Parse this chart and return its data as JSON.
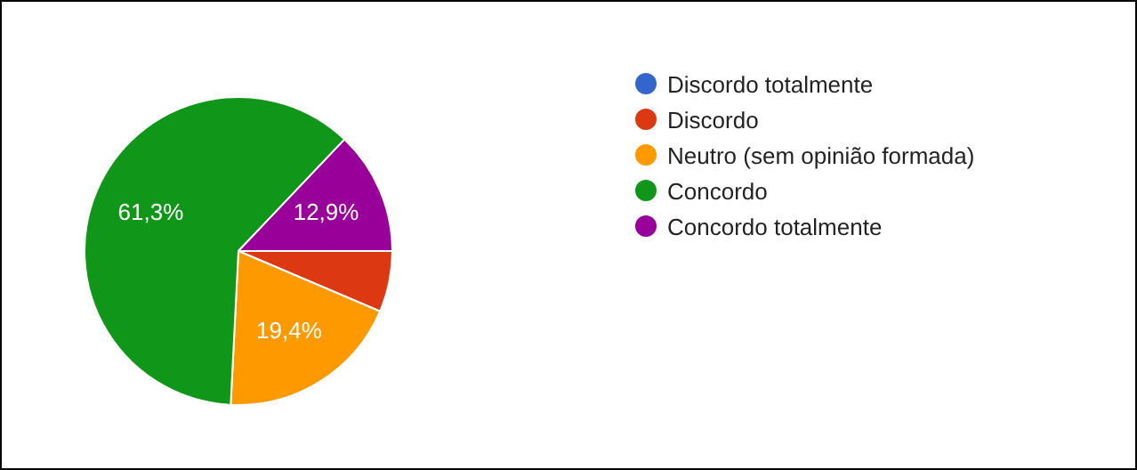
{
  "chart_data": {
    "type": "pie",
    "categories": [
      "Discordo totalmente",
      "Discordo",
      "Neutro (sem opinião formada)",
      "Concordo",
      "Concordo totalmente"
    ],
    "values": [
      0,
      6.4,
      19.4,
      61.3,
      12.9
    ],
    "colors": [
      "#3366cc",
      "#dc3912",
      "#ff9900",
      "#109618",
      "#990099"
    ],
    "value_labels": [
      null,
      null,
      "19,4%",
      "61,3%",
      "12,9%"
    ],
    "legend": "right"
  }
}
